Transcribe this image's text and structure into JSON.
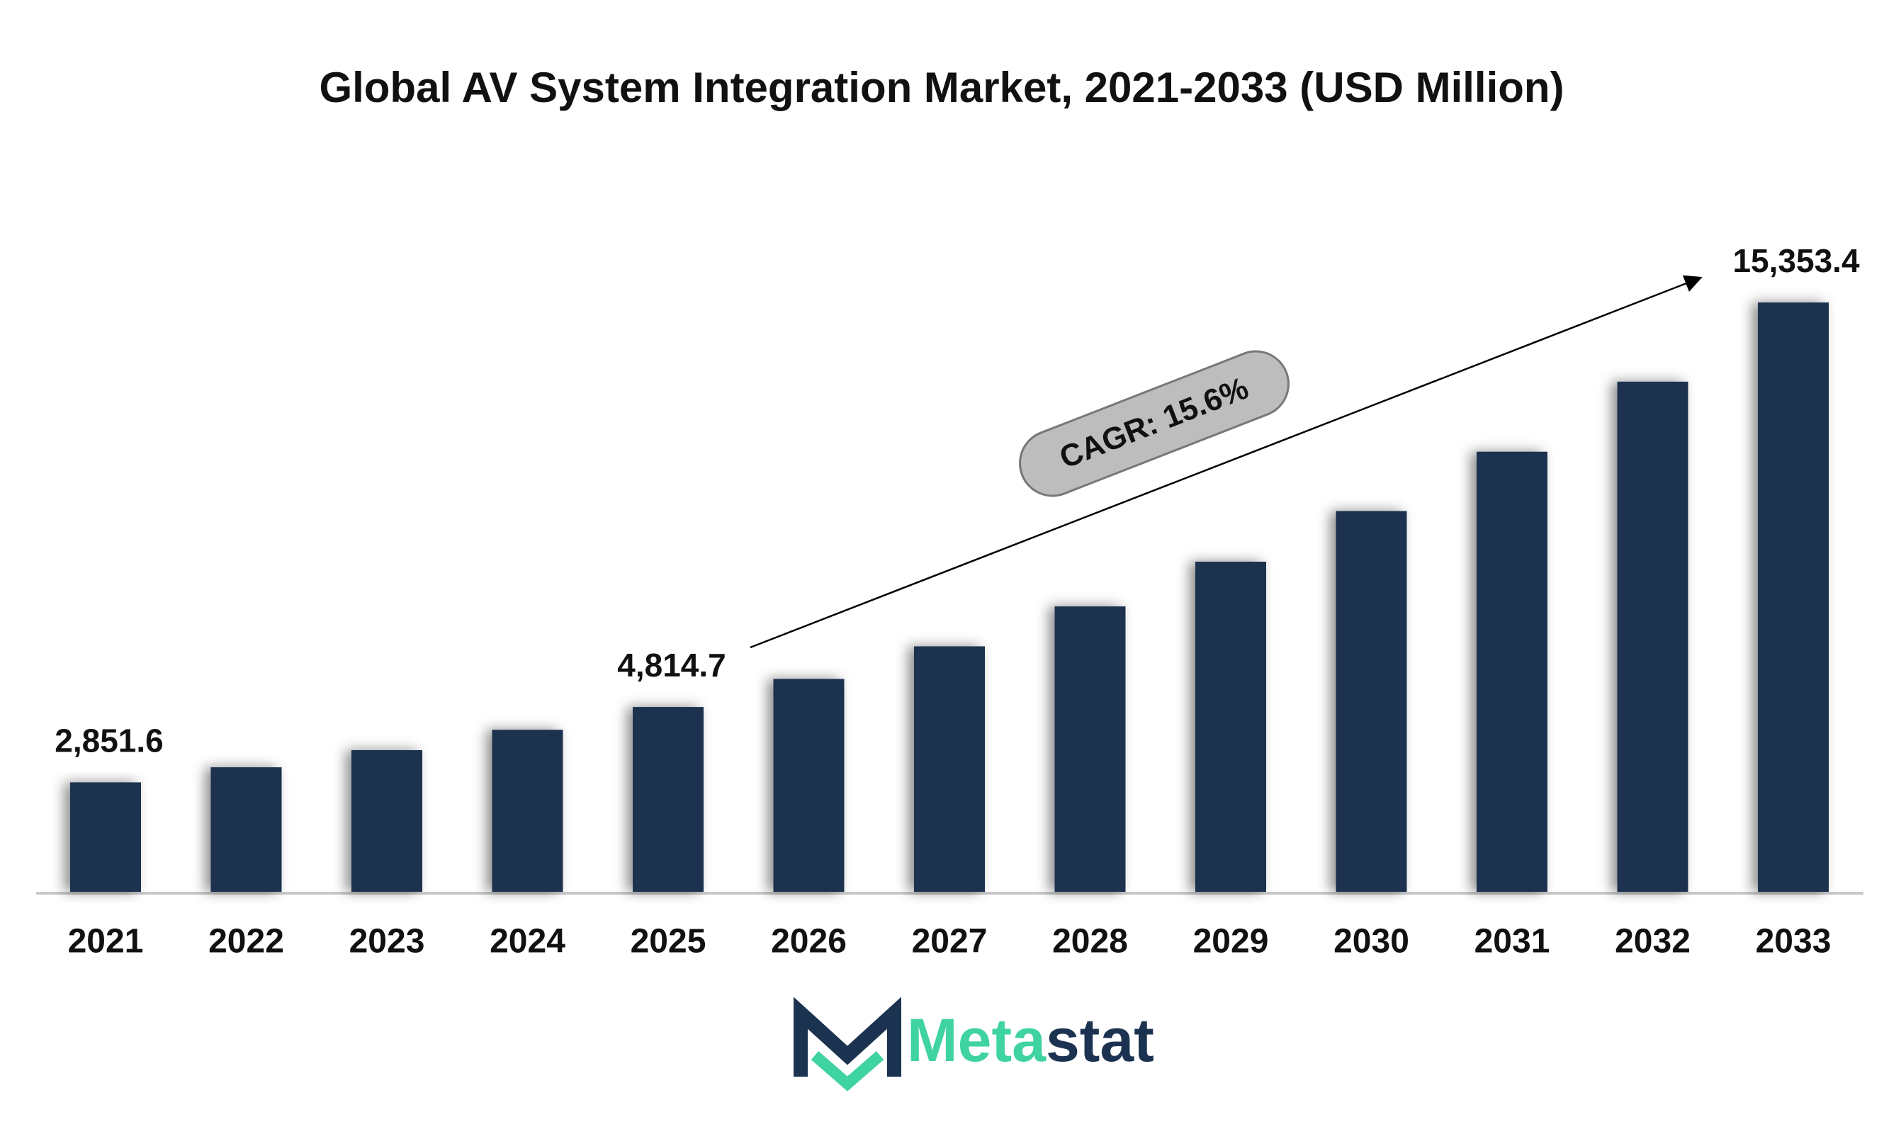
{
  "chart_data": {
    "type": "bar",
    "title": "Global AV System Integration Market, 2021-2033 (USD Million)",
    "categories": [
      "2021",
      "2022",
      "2023",
      "2024",
      "2025",
      "2026",
      "2027",
      "2028",
      "2029",
      "2030",
      "2031",
      "2032",
      "2033"
    ],
    "values": [
      2851.6,
      3245,
      3690,
      4220,
      4814.7,
      5545,
      6395,
      7435,
      8600,
      9920,
      11465,
      13290,
      15353.4
    ],
    "value_labels": [
      "2,851.6",
      null,
      null,
      null,
      "4,814.7",
      null,
      null,
      null,
      null,
      null,
      null,
      null,
      "15,353.4"
    ],
    "color": "#1b3350",
    "annotation": "CAGR: 15.6%",
    "brand": {
      "first": "Meta",
      "second": "stat"
    }
  }
}
